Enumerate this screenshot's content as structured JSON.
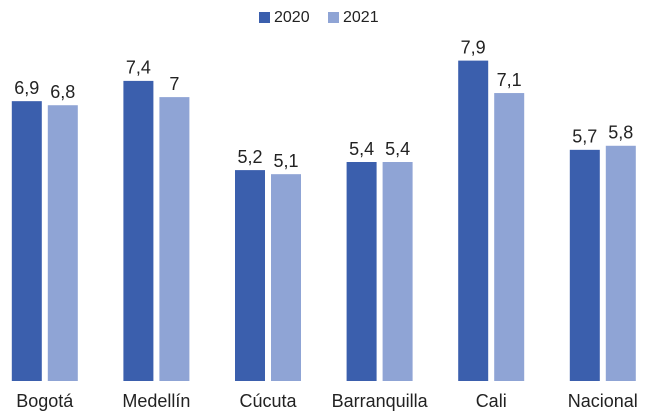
{
  "chart_data": {
    "type": "bar",
    "categories": [
      "Bogotá",
      "Medellín",
      "Cúcuta",
      "Barranquilla",
      "Cali",
      "Nacional"
    ],
    "series": [
      {
        "name": "2020",
        "color": "#3b5fad",
        "values": [
          6.9,
          7.4,
          5.2,
          5.4,
          7.9,
          5.7
        ],
        "value_labels": [
          "6,9",
          "7,4",
          "5,2",
          "5,4",
          "7,9",
          "5,7"
        ]
      },
      {
        "name": "2021",
        "color": "#8fa4d5",
        "values": [
          6.8,
          7,
          5.1,
          5.4,
          7.1,
          5.8
        ],
        "value_labels": [
          "6,8",
          "7",
          "5,1",
          "5,4",
          "7,1",
          "5,8"
        ]
      }
    ],
    "ylim": [
      0,
      9
    ],
    "legend": "top"
  }
}
